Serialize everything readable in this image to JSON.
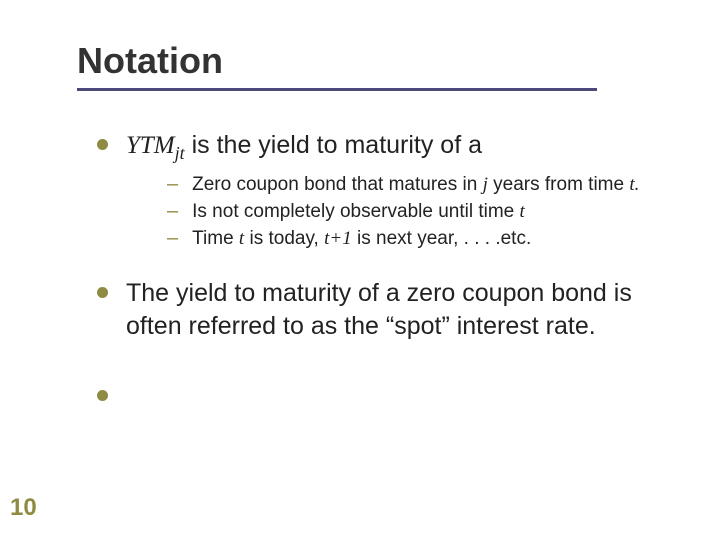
{
  "colors": {
    "title_text": "#333333",
    "underline": "#4a4a78",
    "accent": "#8f8b42",
    "body_text": "#222222",
    "background": "#ffffff"
  },
  "typography": {
    "title_fontsize": 36,
    "body_l1_fontsize": 25,
    "body_l2_fontsize": 19,
    "pagenum_fontsize": 24
  },
  "title": "Notation",
  "bullets": {
    "b1_prefix": "YTM",
    "b1_sub": "jt",
    "b1_suffix": " is the yield to maturity of a",
    "b1_sub1_a": "Zero coupon bond that matures in ",
    "b1_sub1_j": "j",
    "b1_sub1_b": " years from time ",
    "b1_sub1_t": "t.",
    "b1_sub2_a": "Is not completely observable until time ",
    "b1_sub2_t": "t",
    "b1_sub3_a": "Time ",
    "b1_sub3_t1": "t",
    "b1_sub3_b": " is today, ",
    "b1_sub3_t2": "t+1",
    "b1_sub3_c": " is next year, . . . .etc.",
    "b2": "The yield to maturity of a zero coupon bond is often referred to as the “spot” interest rate."
  },
  "page_number": "10"
}
